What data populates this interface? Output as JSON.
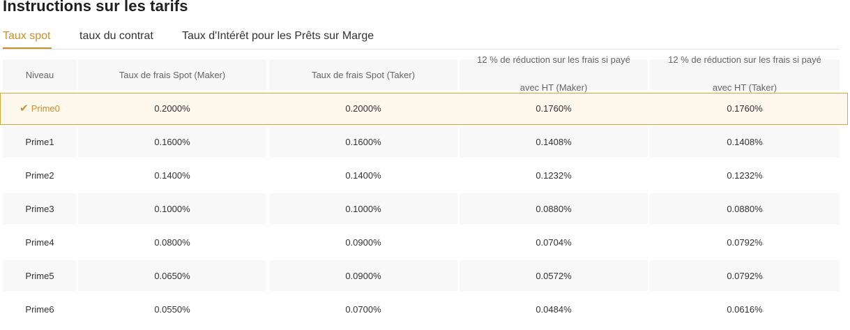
{
  "page": {
    "title": "Instructions sur les tarifs"
  },
  "tabs": [
    {
      "label": "Taux spot",
      "active": true
    },
    {
      "label": "taux du contrat",
      "active": false
    },
    {
      "label": "Taux d'Intérêt pour les Prêts sur Marge",
      "active": false
    }
  ],
  "colors": {
    "accent": "#c8902e",
    "selected_border": "#d9a53e",
    "selected_bg": "#fdf7ec"
  },
  "table": {
    "headers": {
      "level": "Niveau",
      "maker": "Taux de frais Spot (Maker)",
      "taker": "Taux de frais Spot (Taker)",
      "ht_maker_line1": "12 % de réduction sur les frais si payé",
      "ht_maker_line2": "avec HT (Maker)",
      "ht_taker_line1": "12 % de réduction sur les frais si payé",
      "ht_taker_line2": "avec HT (Taker)"
    },
    "selected_icon": "check-icon",
    "rows": [
      {
        "level": "Prime0",
        "maker": "0.2000%",
        "taker": "0.2000%",
        "ht_maker": "0.1760%",
        "ht_taker": "0.1760%"
      },
      {
        "level": "Prime1",
        "maker": "0.1600%",
        "taker": "0.1600%",
        "ht_maker": "0.1408%",
        "ht_taker": "0.1408%"
      },
      {
        "level": "Prime2",
        "maker": "0.1400%",
        "taker": "0.1400%",
        "ht_maker": "0.1232%",
        "ht_taker": "0.1232%"
      },
      {
        "level": "Prime3",
        "maker": "0.1000%",
        "taker": "0.1000%",
        "ht_maker": "0.0880%",
        "ht_taker": "0.0880%"
      },
      {
        "level": "Prime4",
        "maker": "0.0800%",
        "taker": "0.0900%",
        "ht_maker": "0.0704%",
        "ht_taker": "0.0792%"
      },
      {
        "level": "Prime5",
        "maker": "0.0650%",
        "taker": "0.0900%",
        "ht_maker": "0.0572%",
        "ht_taker": "0.0792%"
      },
      {
        "level": "Prime6",
        "maker": "0.0550%",
        "taker": "0.0700%",
        "ht_maker": "0.0484%",
        "ht_taker": "0.0616%"
      }
    ]
  }
}
